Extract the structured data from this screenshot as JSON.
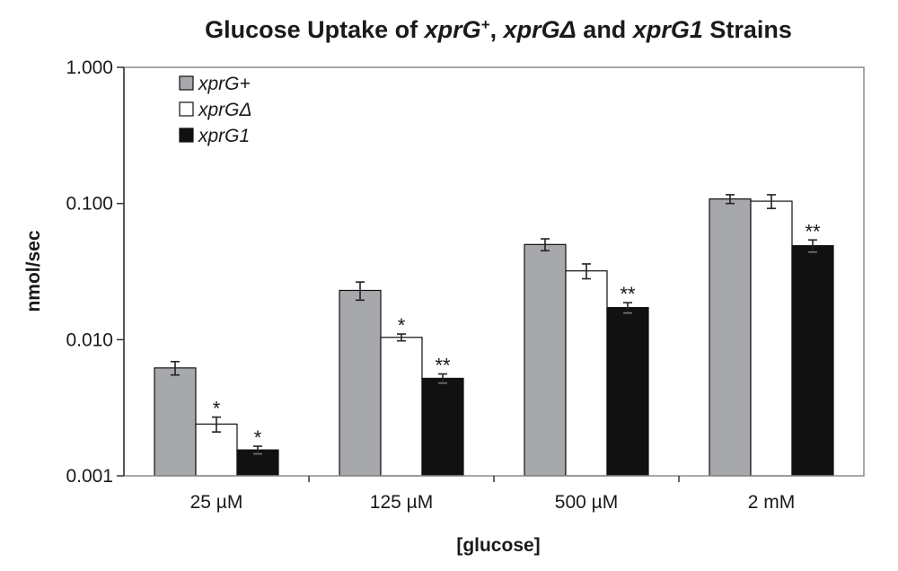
{
  "chart_data": {
    "type": "bar",
    "title_parts": [
      {
        "text": "Glucose Uptake of ",
        "italic": false
      },
      {
        "text": "xprG",
        "italic": true
      },
      {
        "text": "+",
        "italic": false,
        "sup": true
      },
      {
        "text": ", ",
        "italic": false
      },
      {
        "text": "xprGΔ",
        "italic": true
      },
      {
        "text": " and ",
        "italic": false
      },
      {
        "text": "xprG1",
        "italic": true
      },
      {
        "text": " Strains",
        "italic": false
      }
    ],
    "xlabel": "[glucose]",
    "ylabel": "nmol/sec",
    "yscale": "log",
    "ylim": [
      0.001,
      1.0
    ],
    "yticks": [
      0.001,
      0.01,
      0.1,
      1.0
    ],
    "ytick_labels": [
      "0.001",
      "0.010",
      "0.100",
      "1.000"
    ],
    "categories": [
      "25 µM",
      "125 µM",
      "500 µM",
      "2 mM"
    ],
    "legend_position": "top-left",
    "grid": false,
    "series": [
      {
        "name": "xprG+",
        "color": "#a6a8ab",
        "values": [
          0.0062,
          0.023,
          0.05,
          0.108
        ],
        "errors": [
          0.0007,
          0.0035,
          0.005,
          0.008
        ],
        "significance": [
          "",
          "",
          "",
          ""
        ]
      },
      {
        "name": "xprGΔ",
        "color": "#ffffff",
        "values": [
          0.0024,
          0.0104,
          0.032,
          0.104
        ],
        "errors": [
          0.0003,
          0.0006,
          0.004,
          0.012
        ],
        "significance": [
          "*",
          "*",
          "",
          ""
        ]
      },
      {
        "name": "xprG1",
        "color": "#111111",
        "values": [
          0.00155,
          0.0052,
          0.0172,
          0.049
        ],
        "errors": [
          0.0001,
          0.0004,
          0.0015,
          0.005
        ],
        "significance": [
          "*",
          "**",
          "**",
          "**"
        ]
      }
    ]
  }
}
